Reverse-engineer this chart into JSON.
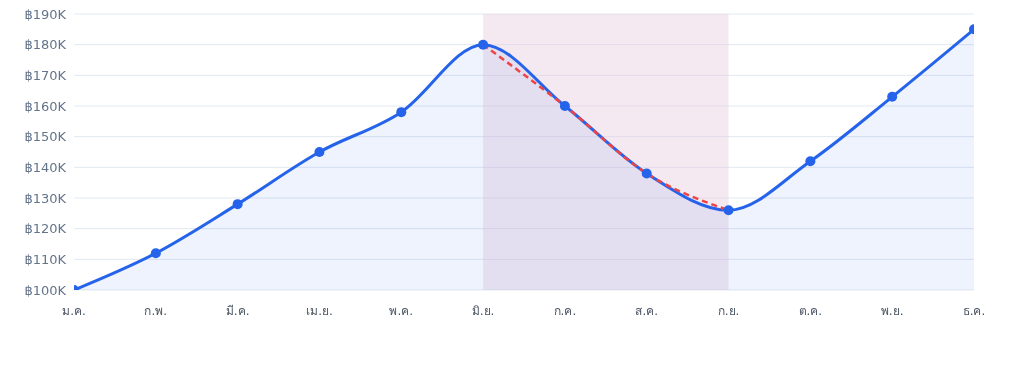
{
  "chart_data": {
    "type": "area",
    "categories": [
      "ม.ค.",
      "ก.พ.",
      "มี.ค.",
      "เม.ย.",
      "พ.ค.",
      "มิ.ย.",
      "ก.ค.",
      "ส.ค.",
      "ก.ย.",
      "ต.ค.",
      "พ.ย.",
      "ธ.ค."
    ],
    "series": [
      {
        "color": "#2563eb",
        "marker": "circle",
        "line_style": "solid",
        "values": [
          100,
          112,
          128,
          145,
          158,
          180,
          160,
          138,
          126,
          142,
          163,
          185
        ]
      },
      {
        "type": "line",
        "color": "#ef4444",
        "marker": "none",
        "line_style": "dashed",
        "values": [
          null,
          null,
          null,
          null,
          null,
          180,
          160,
          138,
          126,
          null,
          null,
          null
        ]
      }
    ],
    "ylim": [
      100,
      190
    ],
    "yticks": [
      {
        "value": 100,
        "label": "฿100K"
      },
      {
        "value": 110,
        "label": "฿110K"
      },
      {
        "value": 120,
        "label": "฿120K"
      },
      {
        "value": 130,
        "label": "฿130K"
      },
      {
        "value": 140,
        "label": "฿140K"
      },
      {
        "value": 150,
        "label": "฿150K"
      },
      {
        "value": 160,
        "label": "฿160K"
      },
      {
        "value": 170,
        "label": "฿170K"
      },
      {
        "value": 180,
        "label": "฿180K"
      },
      {
        "value": 190,
        "label": "฿190K"
      }
    ],
    "bands": [
      {
        "axis": "x",
        "from": "มิ.ย.",
        "to": "ก.ย.",
        "color": "#e3c8dc"
      }
    ],
    "grid": "y"
  }
}
